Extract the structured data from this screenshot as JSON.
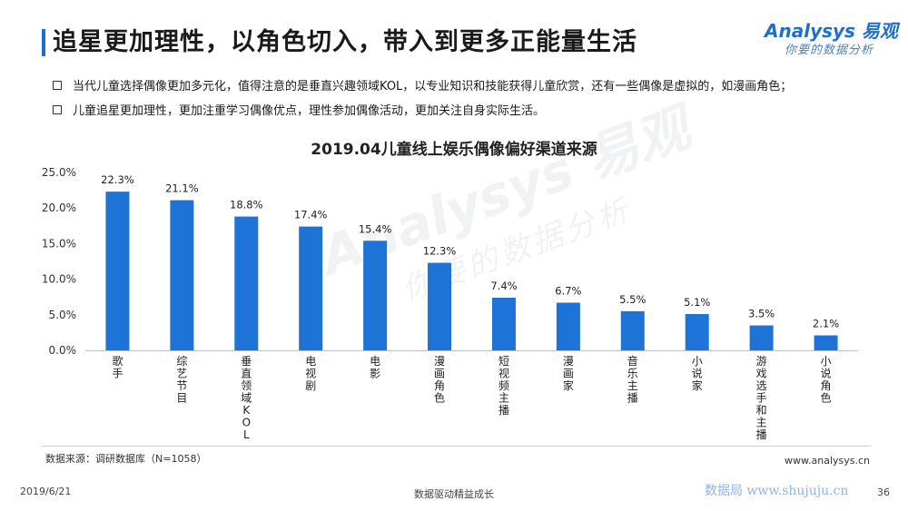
{
  "header": {
    "title": "追星更加理性，以角色切入，带入到更多正能量生活",
    "logo_name": "Analysys 易观",
    "logo_slogan": "你要的数据分析"
  },
  "bullets": [
    "当代儿童选择偶像更加多元化，值得注意的是垂直兴趣领域KOL，以专业知识和技能获得儿童欣赏，还有一些偶像是虚拟的，如漫画角色；",
    "儿童追星更加理性，更加注重学习偶像优点，理性参加偶像活动，更加关注自身实际生活。"
  ],
  "chart_data": {
    "type": "bar",
    "title": "2019.04儿童线上娱乐偶像偏好渠道来源",
    "categories": [
      "歌手",
      "综艺节目",
      "垂直领域KOL",
      "电视剧",
      "电影",
      "漫画角色",
      "短视频主播",
      "漫画家",
      "音乐主播",
      "小说家",
      "游戏选手和主播",
      "小说角色"
    ],
    "values": [
      22.3,
      21.1,
      18.8,
      17.4,
      15.4,
      12.3,
      7.4,
      6.7,
      5.5,
      5.1,
      3.5,
      2.1
    ],
    "value_format": "percent_1dp",
    "y_ticks": [
      "0.0%",
      "5.0%",
      "10.0%",
      "15.0%",
      "20.0%",
      "25.0%"
    ],
    "ylim": [
      0,
      25
    ],
    "grid": false,
    "bar_color": "#1e73d6"
  },
  "footer": {
    "source": "数据来源：调研数据库（N=1058）",
    "website": "www.analysys.cn",
    "date": "2019/6/21",
    "slogan": "数据驱动精益成长",
    "watermark_text": "数据局  www.shujuju.cn",
    "page": "36"
  },
  "watermark": {
    "name": "Analysys 易观",
    "slogan": "你要的数据分析"
  }
}
